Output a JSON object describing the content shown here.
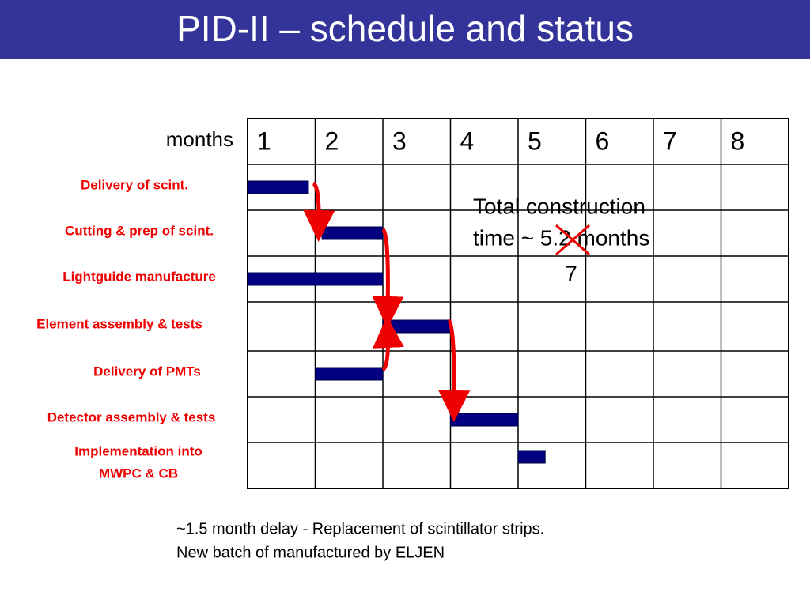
{
  "header": {
    "title": "PID-II – schedule and status"
  },
  "months_label": "months",
  "months": [
    1,
    2,
    3,
    4,
    5,
    6,
    7,
    8
  ],
  "tasks": [
    {
      "label": [
        "Delivery of scint."
      ],
      "start": 0,
      "end": 0.9
    },
    {
      "label": [
        "Cutting & prep of scint."
      ],
      "start": 1.1,
      "end": 2
    },
    {
      "label": [
        "Lightguide manufacture"
      ],
      "start": 0,
      "end": 2
    },
    {
      "label": [
        "Element assembly & tests"
      ],
      "start": 2,
      "end": 3
    },
    {
      "label": [
        "Delivery of PMTs"
      ],
      "start": 1,
      "end": 2
    },
    {
      "label": [
        "Detector assembly & tests"
      ],
      "start": 3,
      "end": 4
    },
    {
      "label": [
        "Implementation into",
        "MWPC & CB"
      ],
      "start": 4,
      "end": 4.4
    }
  ],
  "note": {
    "lines": [
      "Total construction",
      "time ~ 5.2 months"
    ],
    "correction": "7"
  },
  "footer": [
    "~1.5 month delay  - Replacement of scintillator strips.",
    "New batch of manufactured by ELJEN"
  ]
}
